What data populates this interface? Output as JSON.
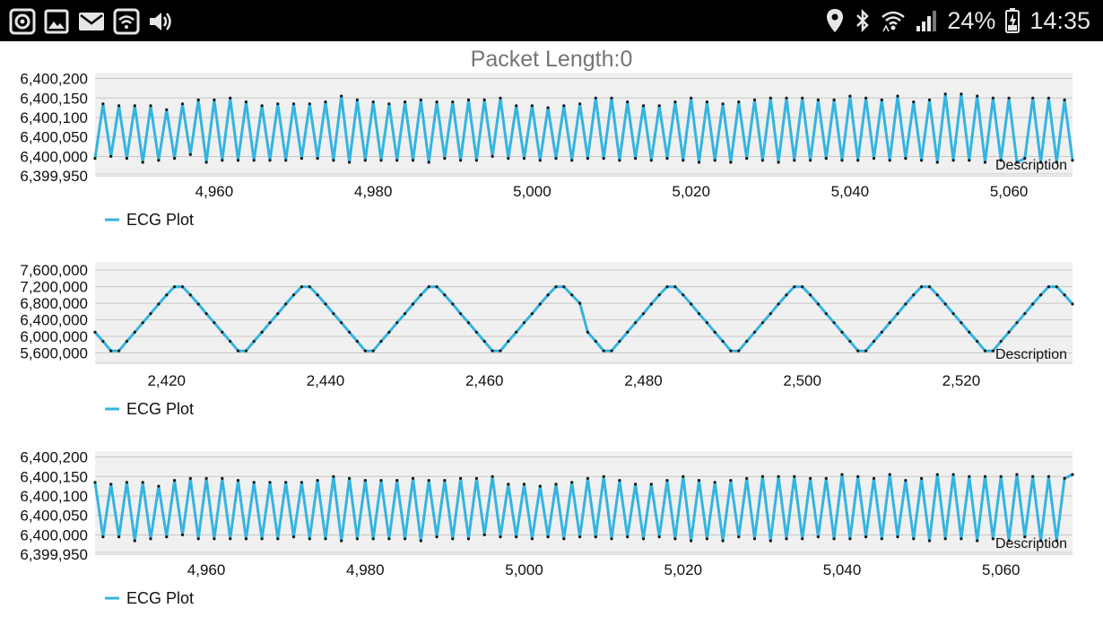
{
  "status_bar": {
    "battery_text": "24%",
    "time_text": "14:35",
    "left_icons": [
      "record-icon",
      "image-icon",
      "mail-icon",
      "wifi-icon",
      "volume-icon"
    ],
    "right_icons": [
      "location-icon",
      "bluetooth-icon",
      "wifi-signal-icon",
      "cell-signal-icon",
      "battery-icon"
    ],
    "icon_color": "#e6e6e6",
    "background": "#000000"
  },
  "header": {
    "label": "Packet Length:",
    "value": "0",
    "color": "#757575"
  },
  "charts": {
    "accent_color": "#34b4e0",
    "plot_background": "#f0f0f0"
  },
  "chart_data": [
    {
      "type": "line",
      "description_label": "Description",
      "legend": [
        "ECG Plot"
      ],
      "legend_position": "bottom-left",
      "grid": true,
      "x_ticks": [
        4960,
        4980,
        5000,
        5020,
        5040,
        5060
      ],
      "x_tick_labels": [
        "4,960",
        "4,980",
        "5,000",
        "5,020",
        "5,040",
        "5,060"
      ],
      "y_ticks": [
        6400200,
        6400150,
        6400100,
        6400050,
        6400000,
        6399950
      ],
      "y_tick_labels": [
        "6,400,200",
        "6,400,150",
        "6,400,100",
        "6,400,050",
        "6,400,000",
        "6,399,950"
      ],
      "xlim": [
        4945,
        5068
      ],
      "ylim": [
        6399955,
        6400215
      ],
      "series": [
        {
          "name": "ECG Plot",
          "x": [
            4945,
            4946,
            4947,
            4948,
            4949,
            4950,
            4951,
            4952,
            4953,
            4954,
            4955,
            4956,
            4957,
            4958,
            4959,
            4960,
            4961,
            4962,
            4963,
            4964,
            4965,
            4966,
            4967,
            4968,
            4969,
            4970,
            4971,
            4972,
            4973,
            4974,
            4975,
            4976,
            4977,
            4978,
            4979,
            4980,
            4981,
            4982,
            4983,
            4984,
            4985,
            4986,
            4987,
            4988,
            4989,
            4990,
            4991,
            4992,
            4993,
            4994,
            4995,
            4996,
            4997,
            4998,
            4999,
            5000,
            5001,
            5002,
            5003,
            5004,
            5005,
            5006,
            5007,
            5008,
            5009,
            5010,
            5011,
            5012,
            5013,
            5014,
            5015,
            5016,
            5017,
            5018,
            5019,
            5020,
            5021,
            5022,
            5023,
            5024,
            5025,
            5026,
            5027,
            5028,
            5029,
            5030,
            5031,
            5032,
            5033,
            5034,
            5035,
            5036,
            5037,
            5038,
            5039,
            5040,
            5041,
            5042,
            5043,
            5044,
            5045,
            5046,
            5047,
            5048,
            5049,
            5050,
            5051,
            5052,
            5053,
            5054,
            5055,
            5056,
            5057,
            5058,
            5059,
            5060,
            5061,
            5062,
            5063,
            5064,
            5065,
            5066,
            5067,
            5068
          ],
          "y": [
            6399995,
            6400135,
            6400000,
            6400130,
            6399995,
            6400130,
            6399985,
            6400130,
            6399990,
            6400120,
            6399995,
            6400135,
            6400005,
            6400145,
            6399985,
            6400145,
            6399990,
            6400150,
            6399990,
            6400140,
            6399990,
            6400130,
            6399990,
            6400135,
            6399990,
            6400135,
            6399995,
            6400135,
            6399995,
            6400140,
            6399990,
            6400155,
            6399985,
            6400145,
            6399990,
            6400140,
            6399990,
            6400135,
            6399990,
            6400140,
            6399990,
            6400145,
            6399985,
            6400140,
            6399995,
            6400140,
            6399990,
            6400145,
            6399990,
            6400145,
            6400000,
            6400150,
            6399995,
            6400130,
            6399995,
            6400130,
            6399990,
            6400125,
            6399995,
            6400130,
            6399990,
            6400135,
            6399995,
            6400150,
            6399995,
            6400150,
            6399990,
            6400140,
            6399995,
            6400130,
            6399990,
            6400130,
            6399995,
            6400140,
            6399990,
            6400150,
            6399985,
            6400140,
            6399990,
            6400135,
            6399985,
            6400140,
            6399995,
            6400145,
            6399990,
            6400150,
            6399985,
            6400150,
            6399990,
            6400150,
            6399990,
            6400145,
            6399995,
            6400145,
            6399990,
            6400155,
            6399990,
            6400150,
            6399995,
            6400145,
            6399990,
            6400155,
            6399995,
            6400140,
            6399990,
            6400145,
            6399985,
            6400160,
            6399990,
            6400160,
            6399990,
            6400155,
            6399985,
            6400150,
            6399990,
            6400150,
            6399985,
            6399995,
            6400150,
            6399985,
            6400150,
            6399985,
            6400145,
            6399990
          ]
        }
      ]
    },
    {
      "type": "line",
      "description_label": "Description",
      "legend": [
        "ECG Plot"
      ],
      "legend_position": "bottom-left",
      "grid": true,
      "x_ticks": [
        2420,
        2440,
        2460,
        2480,
        2500,
        2520
      ],
      "x_tick_labels": [
        "2,420",
        "2,440",
        "2,460",
        "2,480",
        "2,500",
        "2,520"
      ],
      "y_ticks": [
        7600000,
        7200000,
        6800000,
        6400000,
        6000000,
        5600000
      ],
      "y_tick_labels": [
        "7,600,000",
        "7,200,000",
        "6,800,000",
        "6,400,000",
        "6,000,000",
        "5,600,000"
      ],
      "xlim": [
        2411,
        2534
      ],
      "ylim": [
        5350000,
        7800000
      ],
      "series": [
        {
          "name": "ECG Plot",
          "x": [
            2411,
            2412,
            2413,
            2414,
            2415,
            2416,
            2417,
            2418,
            2419,
            2420,
            2421,
            2422,
            2423,
            2424,
            2425,
            2426,
            2427,
            2428,
            2429,
            2430,
            2431,
            2432,
            2433,
            2434,
            2435,
            2436,
            2437,
            2438,
            2439,
            2440,
            2441,
            2442,
            2443,
            2444,
            2445,
            2446,
            2447,
            2448,
            2449,
            2450,
            2451,
            2452,
            2453,
            2454,
            2455,
            2456,
            2457,
            2458,
            2459,
            2460,
            2461,
            2462,
            2463,
            2464,
            2465,
            2466,
            2467,
            2468,
            2469,
            2470,
            2471,
            2472,
            2473,
            2474,
            2475,
            2476,
            2477,
            2478,
            2479,
            2480,
            2481,
            2482,
            2483,
            2484,
            2485,
            2486,
            2487,
            2488,
            2489,
            2490,
            2491,
            2492,
            2493,
            2494,
            2495,
            2496,
            2497,
            2498,
            2499,
            2500,
            2501,
            2502,
            2503,
            2504,
            2505,
            2506,
            2507,
            2508,
            2509,
            2510,
            2511,
            2512,
            2513,
            2514,
            2515,
            2516,
            2517,
            2518,
            2519,
            2520,
            2521,
            2522,
            2523,
            2524,
            2525,
            2526,
            2527,
            2528,
            2529,
            2530,
            2531,
            2532,
            2533,
            2534
          ],
          "y": [
            6100000,
            5880000,
            5650000,
            5650000,
            5880000,
            6100000,
            6330000,
            6550000,
            6780000,
            7000000,
            7200000,
            7200000,
            7000000,
            6780000,
            6550000,
            6330000,
            6100000,
            5880000,
            5650000,
            5650000,
            5880000,
            6100000,
            6330000,
            6550000,
            6780000,
            7000000,
            7200000,
            7200000,
            7000000,
            6780000,
            6550000,
            6330000,
            6100000,
            5880000,
            5650000,
            5650000,
            5880000,
            6100000,
            6330000,
            6550000,
            6780000,
            7000000,
            7200000,
            7200000,
            7000000,
            6780000,
            6550000,
            6330000,
            6100000,
            5880000,
            5650000,
            5650000,
            5880000,
            6100000,
            6330000,
            6550000,
            6780000,
            7000000,
            7200000,
            7200000,
            7000000,
            6800000,
            6100000,
            5880000,
            5650000,
            5650000,
            5880000,
            6100000,
            6330000,
            6550000,
            6780000,
            7000000,
            7200000,
            7200000,
            7000000,
            6780000,
            6550000,
            6330000,
            6100000,
            5880000,
            5650000,
            5650000,
            5880000,
            6100000,
            6330000,
            6550000,
            6780000,
            7000000,
            7200000,
            7200000,
            7000000,
            6780000,
            6550000,
            6330000,
            6100000,
            5880000,
            5650000,
            5650000,
            5880000,
            6100000,
            6330000,
            6550000,
            6780000,
            7000000,
            7200000,
            7200000,
            7000000,
            6780000,
            6550000,
            6330000,
            6100000,
            5880000,
            5650000,
            5650000,
            5880000,
            6100000,
            6330000,
            6550000,
            6780000,
            7000000,
            7200000,
            7200000,
            7000000,
            6780000
          ]
        }
      ]
    },
    {
      "type": "line",
      "description_label": "Description",
      "legend": [
        "ECG Plot"
      ],
      "legend_position": "bottom-left",
      "grid": true,
      "x_ticks": [
        4960,
        4980,
        5000,
        5020,
        5040,
        5060
      ],
      "x_tick_labels": [
        "4,960",
        "4,980",
        "5,000",
        "5,020",
        "5,040",
        "5,060"
      ],
      "y_ticks": [
        6400200,
        6400150,
        6400100,
        6400050,
        6400000,
        6399950
      ],
      "y_tick_labels": [
        "6,400,200",
        "6,400,150",
        "6,400,100",
        "6,400,050",
        "6,400,000",
        "6,399,950"
      ],
      "xlim": [
        4946,
        5069
      ],
      "ylim": [
        6399955,
        6400215
      ],
      "series": [
        {
          "name": "ECG Plot",
          "x": [
            4946,
            4947,
            4948,
            4949,
            4950,
            4951,
            4952,
            4953,
            4954,
            4955,
            4956,
            4957,
            4958,
            4959,
            4960,
            4961,
            4962,
            4963,
            4964,
            4965,
            4966,
            4967,
            4968,
            4969,
            4970,
            4971,
            4972,
            4973,
            4974,
            4975,
            4976,
            4977,
            4978,
            4979,
            4980,
            4981,
            4982,
            4983,
            4984,
            4985,
            4986,
            4987,
            4988,
            4989,
            4990,
            4991,
            4992,
            4993,
            4994,
            4995,
            4996,
            4997,
            4998,
            4999,
            5000,
            5001,
            5002,
            5003,
            5004,
            5005,
            5006,
            5007,
            5008,
            5009,
            5010,
            5011,
            5012,
            5013,
            5014,
            5015,
            5016,
            5017,
            5018,
            5019,
            5020,
            5021,
            5022,
            5023,
            5024,
            5025,
            5026,
            5027,
            5028,
            5029,
            5030,
            5031,
            5032,
            5033,
            5034,
            5035,
            5036,
            5037,
            5038,
            5039,
            5040,
            5041,
            5042,
            5043,
            5044,
            5045,
            5046,
            5047,
            5048,
            5049,
            5050,
            5051,
            5052,
            5053,
            5054,
            5055,
            5056,
            5057,
            5058,
            5059,
            5060,
            5061,
            5062,
            5063,
            5064,
            5065,
            5066,
            5067,
            5068,
            5069
          ],
          "y": [
            6400135,
            6399995,
            6400130,
            6399995,
            6400135,
            6399985,
            6400135,
            6399990,
            6400125,
            6399995,
            6400140,
            6400000,
            6400145,
            6399990,
            6400145,
            6399990,
            6400145,
            6399990,
            6400140,
            6399990,
            6400135,
            6399990,
            6400135,
            6399990,
            6400135,
            6399995,
            6400135,
            6399990,
            6400140,
            6399990,
            6400150,
            6399985,
            6400145,
            6399990,
            6400140,
            6399990,
            6400140,
            6399990,
            6400140,
            6399990,
            6400145,
            6399985,
            6400140,
            6399995,
            6400140,
            6399990,
            6400145,
            6399990,
            6400145,
            6400000,
            6400150,
            6399995,
            6400130,
            6399995,
            6400130,
            6399990,
            6400125,
            6399995,
            6400130,
            6399990,
            6400135,
            6399995,
            6400145,
            6399995,
            6400150,
            6399990,
            6400140,
            6399995,
            6400130,
            6399990,
            6400130,
            6399995,
            6400140,
            6399990,
            6400150,
            6399985,
            6400140,
            6399990,
            6400135,
            6399985,
            6400140,
            6399995,
            6400145,
            6399990,
            6400150,
            6399985,
            6400150,
            6399990,
            6400150,
            6399990,
            6400145,
            6399995,
            6400145,
            6399990,
            6400155,
            6399990,
            6400150,
            6399995,
            6400145,
            6399990,
            6400155,
            6399995,
            6400140,
            6399990,
            6400145,
            6399985,
            6400155,
            6399990,
            6400155,
            6399990,
            6400150,
            6399985,
            6400150,
            6399990,
            6400150,
            6399985,
            6400155,
            6399995,
            6400150,
            6399985,
            6400150,
            6399985,
            6400145,
            6400155
          ]
        }
      ]
    }
  ]
}
